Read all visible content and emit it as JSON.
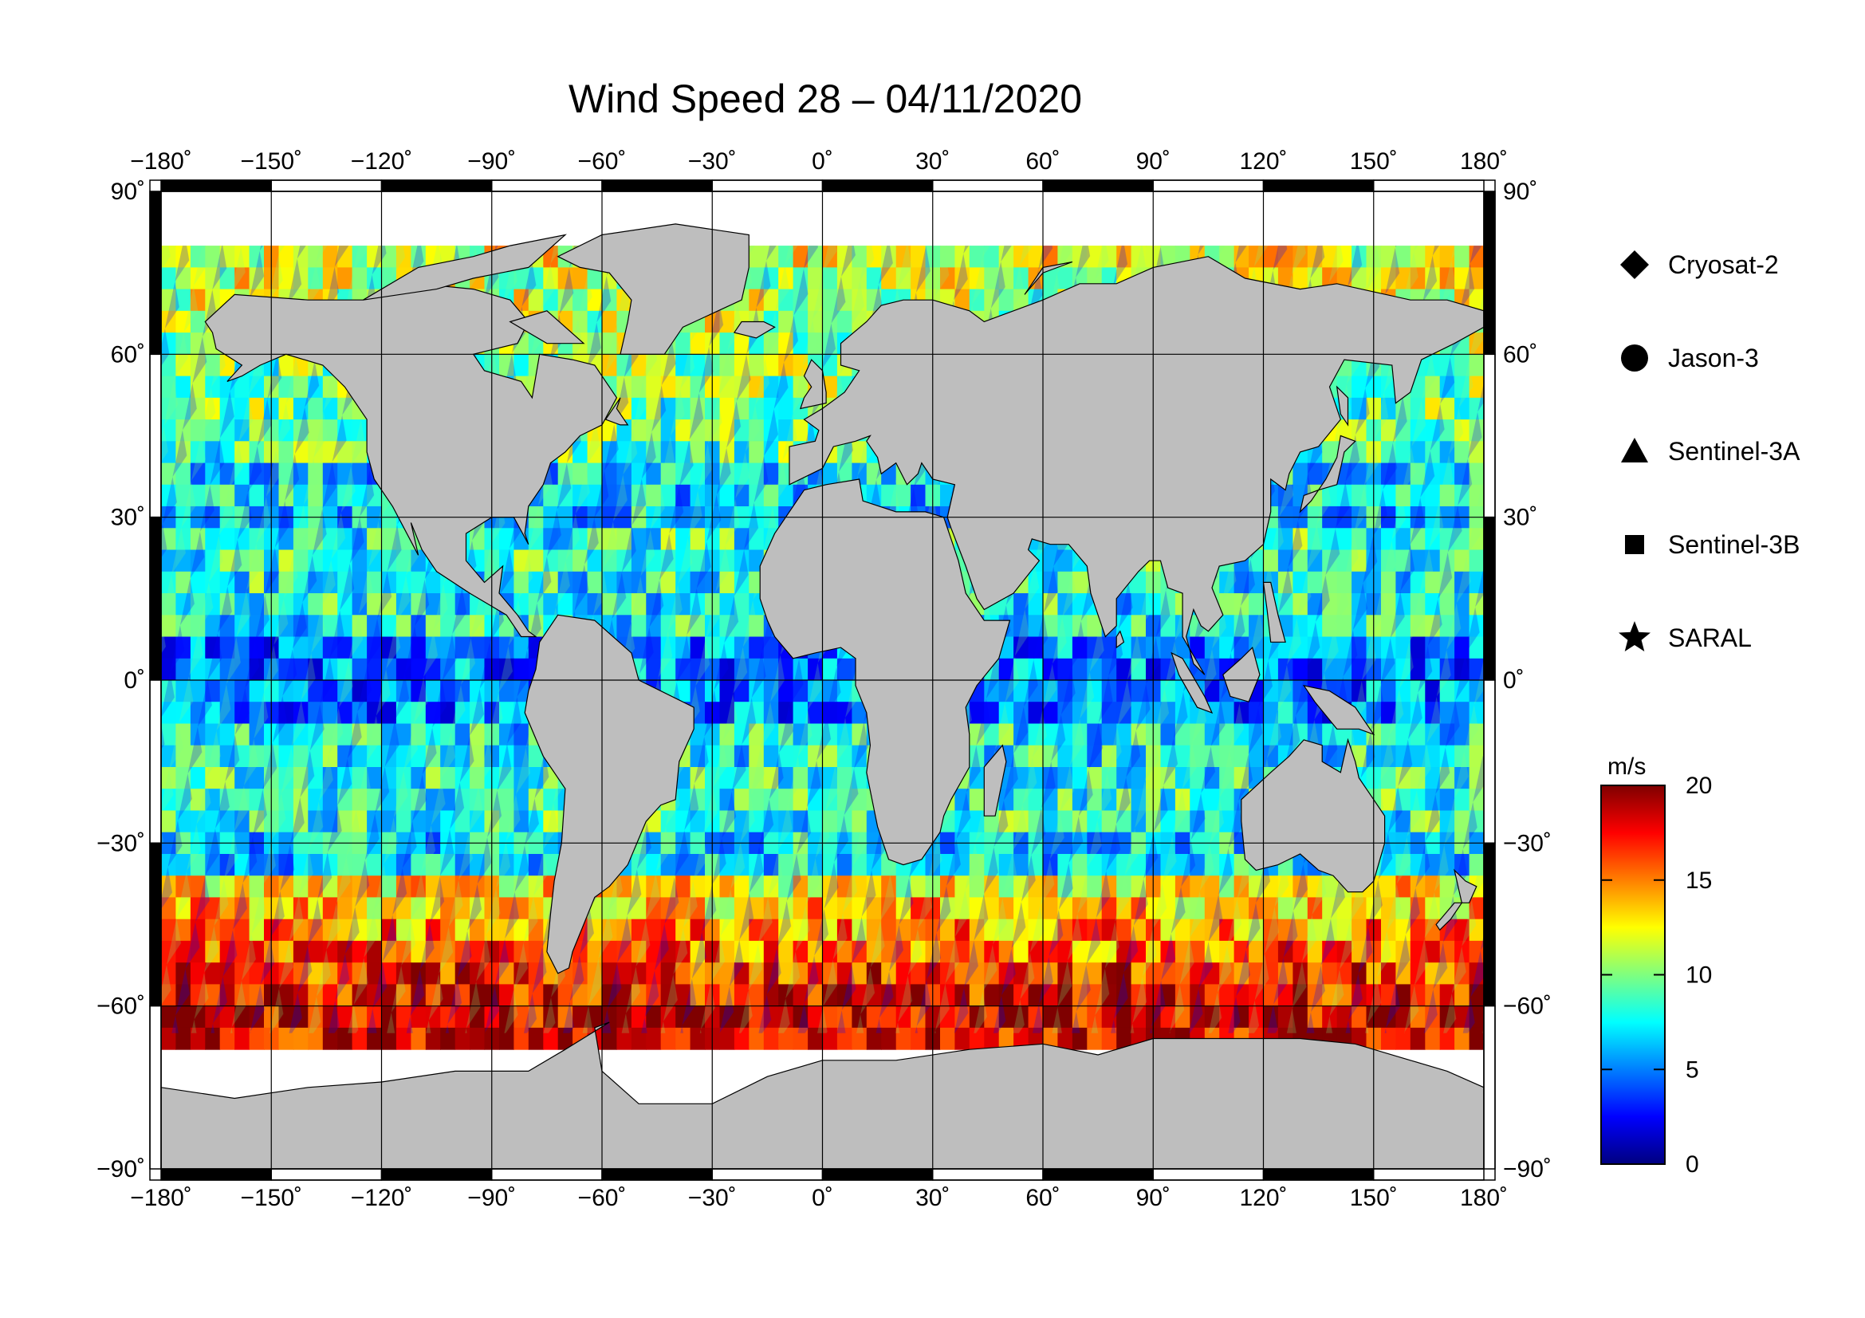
{
  "title": "Wind Speed 28 – 04/11/2020",
  "axes": {
    "lon_ticks": [
      "−180˚",
      "−150˚",
      "−120˚",
      "−90˚",
      "−60˚",
      "−30˚",
      "0˚",
      "30˚",
      "60˚",
      "90˚",
      "120˚",
      "150˚",
      "180˚"
    ],
    "lat_ticks_left": [
      "90˚",
      "60˚",
      "30˚",
      "0˚",
      "−30˚",
      "−60˚",
      "−90˚"
    ],
    "lat_ticks_right": [
      "90˚",
      "60˚",
      "30˚",
      "0˚",
      "−30˚",
      "−60˚",
      "−90˚"
    ]
  },
  "legend": {
    "items": [
      {
        "label": "Cryosat-2",
        "symbol": "diamond"
      },
      {
        "label": "Jason-3",
        "symbol": "circle"
      },
      {
        "label": "Sentinel-3A",
        "symbol": "triangle"
      },
      {
        "label": "Sentinel-3B",
        "symbol": "square"
      },
      {
        "label": "SARAL",
        "symbol": "star"
      }
    ]
  },
  "colorbar": {
    "unit": "m/s",
    "min": 0,
    "max": 20,
    "ticks": [
      "20",
      "15",
      "10",
      "5",
      "0"
    ],
    "colors": [
      "#00007f",
      "#0000ff",
      "#007fff",
      "#00ffff",
      "#7fff7f",
      "#ffff00",
      "#ff7f00",
      "#ff0000",
      "#7f0000"
    ]
  },
  "map": {
    "projection": "equirectangular",
    "lon_range": [
      -180,
      180
    ],
    "lat_range": [
      -90,
      90
    ],
    "gridline_step_deg": 30,
    "land_color": "#bebebe",
    "ice_color": "#ffffff",
    "coverage_lat_range": [
      -65,
      80
    ]
  }
}
